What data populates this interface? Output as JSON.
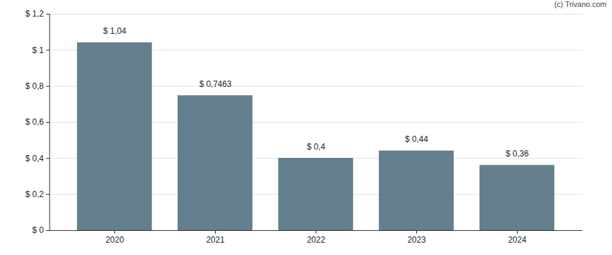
{
  "chart_data": {
    "type": "bar",
    "caption": "(c) Trivano.com",
    "categories": [
      "2020",
      "2021",
      "2022",
      "2023",
      "2024"
    ],
    "values": [
      1.04,
      0.7463,
      0.4,
      0.44,
      0.36
    ],
    "value_labels": [
      "$ 1,04",
      "$ 0,7463",
      "$ 0,4",
      "$ 0,44",
      "$ 0,36"
    ],
    "data_labels": true,
    "color": "#64808f",
    "ylim": [
      0,
      1.2
    ],
    "yticks": [
      {
        "value": 0,
        "label": "$ 0"
      },
      {
        "value": 0.2,
        "label": "$ 0,2"
      },
      {
        "value": 0.4,
        "label": "$ 0,4"
      },
      {
        "value": 0.6,
        "label": "$ 0,6"
      },
      {
        "value": 0.8,
        "label": "$ 0,8"
      },
      {
        "value": 1,
        "label": "$ 1"
      },
      {
        "value": 1.2,
        "label": "$ 1,2"
      }
    ],
    "grid": true
  }
}
